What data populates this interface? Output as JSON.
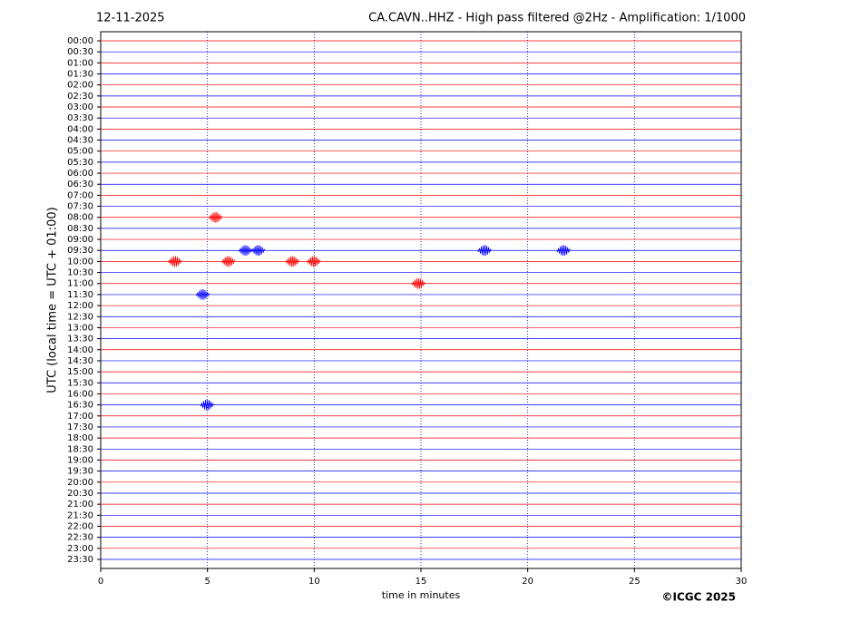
{
  "chart_data": {
    "type": "helicorder",
    "title": "CA.CAVN..HHZ - High pass filtered @2Hz - Amplification: 1/1000",
    "date": "12-11-2025",
    "ylabel": "UTC (local time = UTC + 01:00)",
    "xlabel": "time in minutes",
    "credit": "©ICGC 2025",
    "categories": [
      "00:00",
      "00:30",
      "01:00",
      "01:30",
      "02:00",
      "02:30",
      "03:00",
      "03:30",
      "04:00",
      "04:30",
      "05:00",
      "05:30",
      "06:00",
      "06:30",
      "07:00",
      "07:30",
      "08:00",
      "08:30",
      "09:00",
      "09:30",
      "10:00",
      "10:30",
      "11:00",
      "11:30",
      "12:00",
      "12:30",
      "13:00",
      "13:30",
      "14:00",
      "14:30",
      "15:00",
      "15:30",
      "16:00",
      "16:30",
      "17:00",
      "17:30",
      "18:00",
      "18:30",
      "19:00",
      "19:30",
      "20:00",
      "20:30",
      "21:00",
      "21:30",
      "22:00",
      "22:30",
      "23:00",
      "23:30"
    ],
    "trace_colors": [
      "#ff0000",
      "#0000ff"
    ],
    "xlim": [
      0,
      30
    ],
    "xticks": [
      0,
      5,
      10,
      15,
      20,
      25,
      30
    ],
    "grid": true,
    "events": [
      {
        "row": "08:00",
        "x": 5.4
      },
      {
        "row": "09:30",
        "x": 6.8
      },
      {
        "row": "09:30",
        "x": 7.4
      },
      {
        "row": "09:30",
        "x": 18
      },
      {
        "row": "09:30",
        "x": 21.7
      },
      {
        "row": "10:00",
        "x": 3.5
      },
      {
        "row": "10:00",
        "x": 6
      },
      {
        "row": "10:00",
        "x": 9
      },
      {
        "row": "10:00",
        "x": 10
      },
      {
        "row": "11:00",
        "x": 14.9
      },
      {
        "row": "11:30",
        "x": 4.8
      },
      {
        "row": "16:30",
        "x": 5
      }
    ]
  }
}
